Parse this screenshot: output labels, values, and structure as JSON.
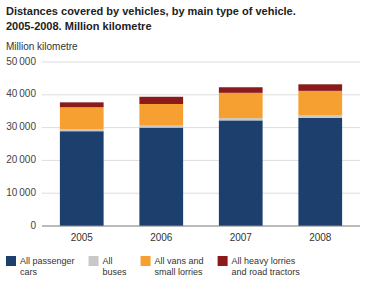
{
  "chart_data": {
    "type": "bar",
    "stacked": true,
    "title": "Distances covered by vehicles, by main type of vehicle.",
    "subtitle": "2005-2008. Million kilometre",
    "y_label": "Million kilometre",
    "categories": [
      "2005",
      "2006",
      "2007",
      "2008"
    ],
    "series": [
      {
        "name": "All passenger\ncars",
        "color": "#1c3f6e",
        "values": [
          28900,
          30000,
          32200,
          33000
        ]
      },
      {
        "name": "All\nbuses",
        "color": "#c8c8c8",
        "values": [
          600,
          600,
          700,
          700
        ]
      },
      {
        "name": "All vans and\nsmall lorries",
        "color": "#f5a030",
        "values": [
          6700,
          6600,
          7700,
          7500
        ]
      },
      {
        "name": "All heavy lorries\nand road tractors",
        "color": "#8b1a1a",
        "values": [
          1500,
          2200,
          1700,
          2000
        ]
      }
    ],
    "ylim": [
      0,
      50000
    ],
    "yticks": [
      0,
      {
        "value": 10000,
        "label": "10 000"
      },
      {
        "value": 20000,
        "label": "20 000"
      },
      {
        "value": 30000,
        "label": "30 000"
      },
      {
        "value": 40000,
        "label": "40 000"
      },
      {
        "value": 50000,
        "label": "50 000"
      }
    ],
    "grid": true,
    "legend": "bottom"
  }
}
